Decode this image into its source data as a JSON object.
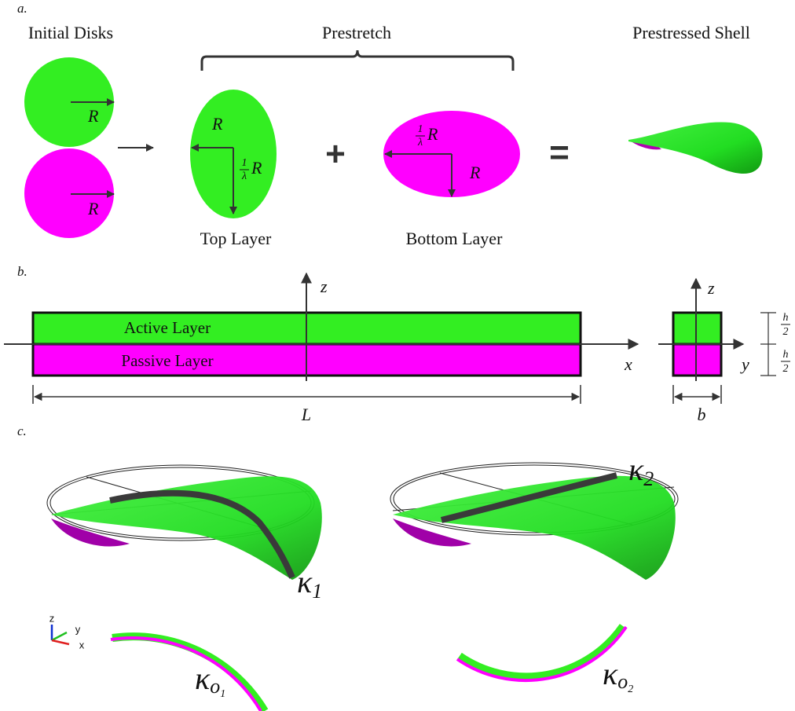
{
  "panel_a": {
    "label": "a.",
    "initial_disks": "Initial Disks",
    "prestretch": "Prestretch",
    "prestressed_shell": "Prestressed Shell",
    "top_disk_radius": "R",
    "bottom_disk_radius": "R",
    "top_layer": {
      "title": "Top Layer",
      "radius": "R",
      "scaled_radius": {
        "numerator": "1",
        "denominator": "λ",
        "symbol": "R"
      }
    },
    "bottom_layer": {
      "title": "Bottom Layer",
      "radius": "R",
      "scaled_radius": {
        "numerator": "1",
        "denominator": "λ",
        "symbol": "R"
      }
    },
    "plus": "+",
    "equals": "="
  },
  "panel_b": {
    "label": "b.",
    "active_layer": "Active Layer",
    "passive_layer": "Passive Layer",
    "axis_x": "x",
    "axis_z": "z",
    "length": "L",
    "section_axis_y": "y",
    "section_axis_z": "z",
    "width": "b",
    "half_thickness": [
      {
        "numerator": "h",
        "denominator": "2"
      },
      {
        "numerator": "h",
        "denominator": "2"
      }
    ]
  },
  "panel_c": {
    "label": "c.",
    "curvature_1": {
      "symbol": "κ",
      "subscript": "1"
    },
    "curvature_2": {
      "symbol": "κ",
      "subscript": "2"
    },
    "natural_curvature_1": {
      "symbol": "κ",
      "subscript": "o",
      "index": "1"
    },
    "natural_curvature_2": {
      "symbol": "κ",
      "subscript": "o",
      "index": "2"
    },
    "triad": {
      "z": "z",
      "y": "y",
      "x": "x"
    }
  }
}
